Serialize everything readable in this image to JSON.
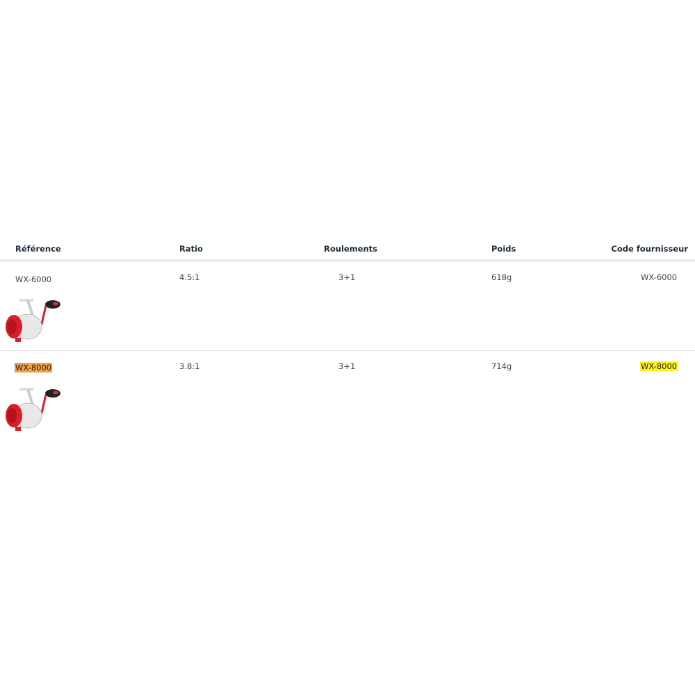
{
  "table": {
    "headers": [
      "Référence",
      "Ratio",
      "Roulements",
      "Poids",
      "Code fournisseur"
    ],
    "rows": [
      {
        "reference": "WX-6000",
        "ratio": "4.5:1",
        "roulements": "3+1",
        "poids": "618g",
        "code": "WX-6000",
        "reference_highlight": "none",
        "code_highlight": "none",
        "image": "fishing-reel-red-white"
      },
      {
        "reference": "WX-8000",
        "ratio": "3.8:1",
        "roulements": "3+1",
        "poids": "714g",
        "code": "WX-8000",
        "reference_highlight": "#f7a144",
        "code_highlight": "#fdf21c",
        "image": "fishing-reel-red-white"
      }
    ]
  }
}
